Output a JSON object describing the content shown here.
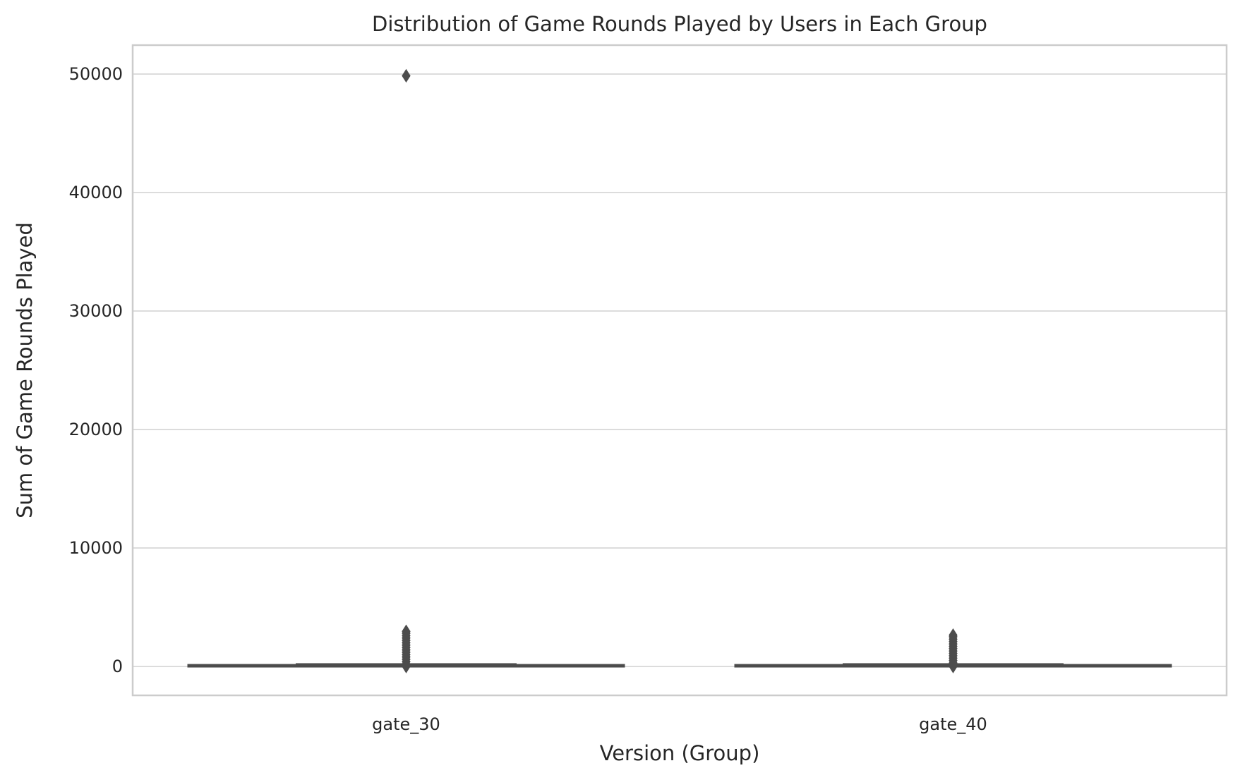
{
  "chart_data": {
    "type": "box",
    "title": "Distribution of Game Rounds Played by Users in Each Group",
    "xlabel": "Version (Group)",
    "ylabel": "Sum of Game Rounds Played",
    "categories": [
      "gate_30",
      "gate_40"
    ],
    "ylim": [
      -2500,
      52500
    ],
    "yticks": [
      0,
      10000,
      20000,
      30000,
      40000,
      50000
    ],
    "grid": true,
    "colors": {
      "box": "#4c4c4c",
      "grid": "#dcdcdc",
      "frame": "#cccccc"
    },
    "boxes": [
      {
        "category": "gate_30",
        "whisker_low": 0,
        "q1": 5,
        "median": 17,
        "q3": 50,
        "whisker_high": 117,
        "outliers": [
          49854,
          2961,
          2800,
          2600,
          2400,
          2200,
          2000,
          1800,
          1600,
          1400,
          1200,
          1000,
          800,
          600,
          400,
          200,
          0
        ]
      },
      {
        "category": "gate_40",
        "whisker_low": 0,
        "q1": 5,
        "median": 16,
        "q3": 52,
        "whisker_high": 122,
        "outliers": [
          2640,
          2500,
          2300,
          2100,
          1900,
          1700,
          1500,
          1300,
          1100,
          900,
          700,
          500,
          300,
          0
        ]
      }
    ]
  }
}
